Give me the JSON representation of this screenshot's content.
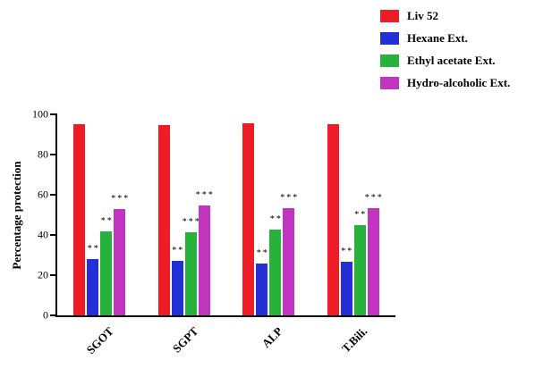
{
  "figure": {
    "background": "#ffffff",
    "axis_color": "#000000"
  },
  "chart_data": {
    "type": "bar",
    "title": "",
    "xlabel": "",
    "ylabel": "Percentage protection",
    "ylim": [
      0,
      100
    ],
    "yticks": [
      0,
      20,
      40,
      60,
      80,
      100
    ],
    "grid": false,
    "legend_position": "top-right",
    "categories": [
      "SGOT",
      "SGPT",
      "ALP",
      "T.Bili."
    ],
    "series": [
      {
        "name": "Liv 52",
        "color": "#ee1c25",
        "values": [
          95,
          94.5,
          95.5,
          95
        ],
        "annotations": [
          "",
          "",
          "",
          ""
        ]
      },
      {
        "name": "Hexane Ext.",
        "color": "#2430d6",
        "values": [
          28,
          27,
          26,
          26.5
        ],
        "annotations": [
          "**",
          "**",
          "**",
          "**"
        ]
      },
      {
        "name": "Ethyl acetate Ext.",
        "color": "#27b33b",
        "values": [
          42,
          41.5,
          42.5,
          45
        ],
        "annotations": [
          "**",
          "***",
          "**",
          "**"
        ]
      },
      {
        "name": "Hydro-alcoholic Ext.",
        "color": "#c136c1",
        "values": [
          53,
          54.5,
          53.5,
          53.5
        ],
        "annotations": [
          "***",
          "***",
          "***",
          "***"
        ]
      }
    ]
  }
}
